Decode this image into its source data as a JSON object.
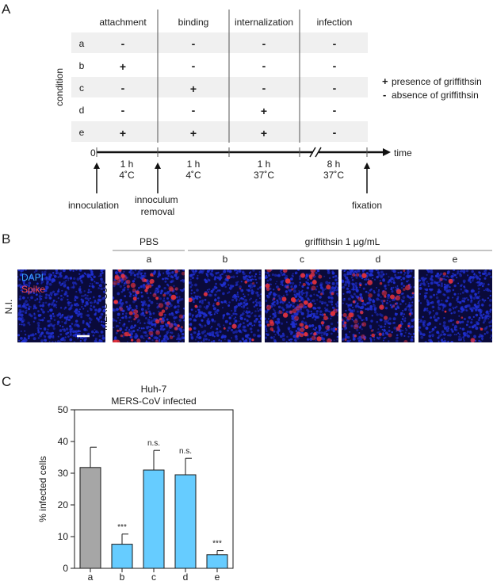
{
  "panel_a": {
    "letter": "A",
    "y_label": "condition",
    "phases": [
      "attachment",
      "binding",
      "internalization",
      "infection"
    ],
    "rows": [
      {
        "label": "a",
        "marks": [
          "-",
          "-",
          "-",
          "-"
        ]
      },
      {
        "label": "b",
        "marks": [
          "+",
          "-",
          "-",
          "-"
        ]
      },
      {
        "label": "c",
        "marks": [
          "-",
          "+",
          "-",
          "-"
        ]
      },
      {
        "label": "d",
        "marks": [
          "-",
          "-",
          "+",
          "-"
        ]
      },
      {
        "label": "e",
        "marks": [
          "+",
          "+",
          "+",
          "-"
        ]
      }
    ],
    "legend": [
      {
        "symbol": "+",
        "text": "presence of griffithsin"
      },
      {
        "symbol": "-",
        "text": "absence of griffithsin"
      }
    ],
    "timeline": {
      "start": "0",
      "end_label": "time",
      "steps": [
        {
          "duration": "1 h",
          "temp": "4˚C"
        },
        {
          "duration": "1 h",
          "temp": "4˚C"
        },
        {
          "duration": "1 h",
          "temp": "37˚C"
        },
        {
          "duration": "8 h",
          "temp": "37˚C"
        }
      ],
      "events": [
        "innoculation",
        "innoculum\nremoval",
        "fixation"
      ]
    }
  },
  "panel_b": {
    "letter": "B",
    "group_labels": {
      "pbs": "PBS",
      "griffithsin": "griffithsin 1 μg/mL"
    },
    "conditions": [
      "a",
      "b",
      "c",
      "d",
      "e"
    ],
    "ni_label": "N.I.",
    "row_label": "MERS-CoV",
    "stain_labels": {
      "dapi": "DAPI",
      "spike": "Spike"
    },
    "colors": {
      "dapi": "#1f2fd0",
      "spike": "#e8323a",
      "background": "#0a0a3a"
    }
  },
  "panel_c": {
    "letter": "C",
    "colors": {
      "control": "#a6a6a6",
      "treated": "#66ccff",
      "axis": "#1a1a1a"
    }
  },
  "chart_data": {
    "type": "bar",
    "title": "Huh-7",
    "subtitle": "MERS-CoV infected",
    "xlabel": "",
    "ylabel": "% infected cells",
    "categories": [
      "a",
      "b",
      "c",
      "d",
      "e"
    ],
    "values": [
      31.8,
      7.6,
      31.0,
      29.5,
      4.3
    ],
    "errors": [
      6.4,
      3.2,
      6.2,
      5.2,
      1.3
    ],
    "annotations": [
      "",
      "***",
      "n.s.",
      "n.s.",
      "***"
    ],
    "ylim": [
      0,
      50
    ],
    "yticks": [
      0,
      10,
      20,
      30,
      40,
      50
    ],
    "grid": false
  }
}
